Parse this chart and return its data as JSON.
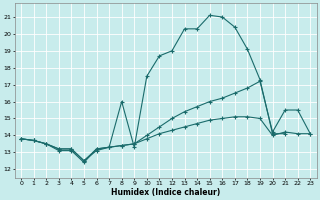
{
  "title": "",
  "xlabel": "Humidex (Indice chaleur)",
  "ylabel": "",
  "bg_color": "#c8ecec",
  "grid_color": "#ffffff",
  "line_color": "#1a6b6b",
  "xlim": [
    -0.5,
    23.5
  ],
  "ylim": [
    11.5,
    21.8
  ],
  "yticks": [
    12,
    13,
    14,
    15,
    16,
    17,
    18,
    19,
    20,
    21
  ],
  "xticks": [
    0,
    1,
    2,
    3,
    4,
    5,
    6,
    7,
    8,
    9,
    10,
    11,
    12,
    13,
    14,
    15,
    16,
    17,
    18,
    19,
    20,
    21,
    22,
    23
  ],
  "series": [
    {
      "x": [
        0,
        1,
        2,
        3,
        4,
        5,
        6,
        7,
        8,
        9,
        10,
        11,
        12,
        13,
        14,
        15,
        16,
        17,
        18,
        19,
        20,
        21
      ],
      "y": [
        13.8,
        13.7,
        13.5,
        13.1,
        13.1,
        12.4,
        13.2,
        13.3,
        16.0,
        13.3,
        17.5,
        18.7,
        19.0,
        20.3,
        20.3,
        21.1,
        21.0,
        20.4,
        19.1,
        17.3,
        14.1,
        14.1
      ]
    },
    {
      "x": [
        0,
        1,
        2,
        3,
        4,
        5,
        6,
        7,
        8,
        9,
        10,
        11,
        12,
        13,
        14,
        15,
        16,
        17,
        18,
        19,
        20,
        21,
        22,
        23
      ],
      "y": [
        13.8,
        13.7,
        13.5,
        13.2,
        13.2,
        12.5,
        13.2,
        13.3,
        13.4,
        13.5,
        14.0,
        14.5,
        15.0,
        15.4,
        15.7,
        16.0,
        16.2,
        16.5,
        16.8,
        17.2,
        14.2,
        15.5,
        15.5,
        14.1
      ]
    },
    {
      "x": [
        0,
        1,
        2,
        3,
        4,
        5,
        6,
        7,
        8,
        9,
        10,
        11,
        12,
        13,
        14,
        15,
        16,
        17,
        18,
        19,
        20,
        21,
        22,
        23
      ],
      "y": [
        13.8,
        13.7,
        13.5,
        13.2,
        13.2,
        12.5,
        13.1,
        13.3,
        13.4,
        13.5,
        13.8,
        14.1,
        14.3,
        14.5,
        14.7,
        14.9,
        15.0,
        15.1,
        15.1,
        15.0,
        14.0,
        14.2,
        14.1,
        14.1
      ]
    }
  ]
}
